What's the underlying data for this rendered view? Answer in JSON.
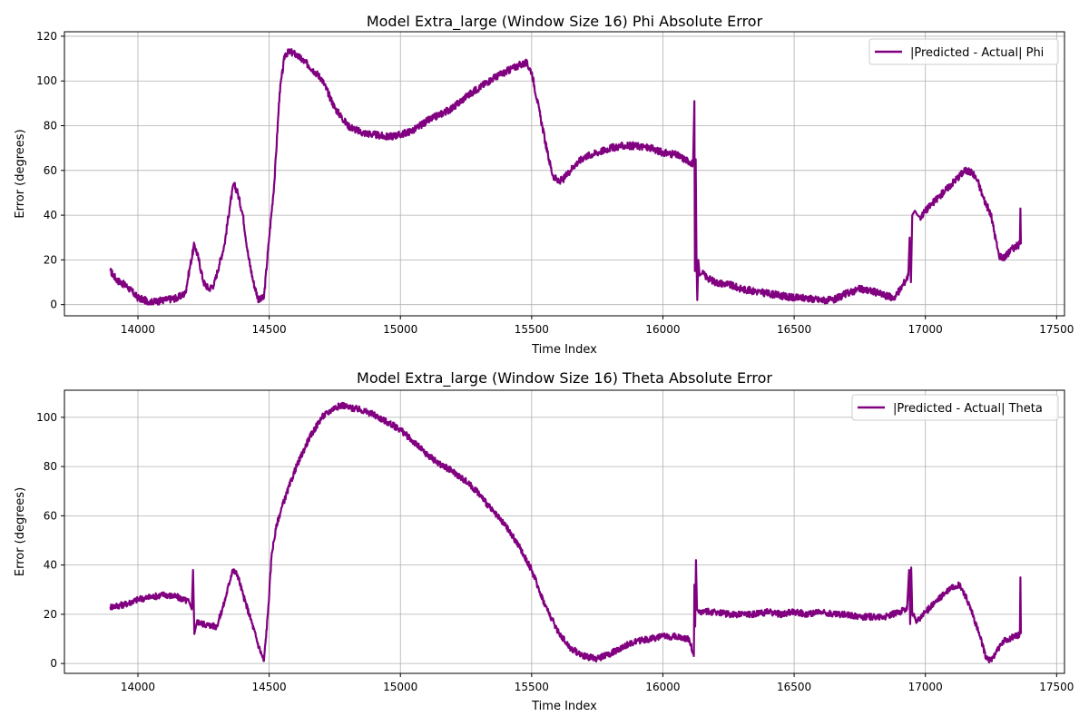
{
  "series_color": "#800080",
  "chart_data": [
    {
      "type": "line",
      "title": "Model Extra_large (Window Size 16) Phi Absolute Error",
      "xlabel": "Time Index",
      "ylabel": "Error (degrees)",
      "xlim": [
        13720,
        17530
      ],
      "ylim": [
        -5,
        122
      ],
      "xticks": [
        14000,
        14500,
        15000,
        15500,
        16000,
        16500,
        17000,
        17500
      ],
      "yticks": [
        0,
        20,
        40,
        60,
        80,
        100,
        120
      ],
      "grid": true,
      "legend_position": "top-right",
      "series": [
        {
          "name": "|Predicted - Actual| Phi",
          "noise": 1.6,
          "x": [
            13895,
            13920,
            13960,
            14000,
            14050,
            14100,
            14150,
            14180,
            14200,
            14215,
            14230,
            14250,
            14270,
            14290,
            14310,
            14330,
            14350,
            14365,
            14380,
            14400,
            14420,
            14440,
            14460,
            14480,
            14500,
            14520,
            14540,
            14560,
            14580,
            14600,
            14650,
            14700,
            14750,
            14800,
            14850,
            14900,
            14950,
            15000,
            15050,
            15100,
            15150,
            15200,
            15250,
            15300,
            15350,
            15400,
            15450,
            15480,
            15500,
            15520,
            15540,
            15560,
            15580,
            15600,
            15620,
            15640,
            15660,
            15700,
            15750,
            15800,
            15850,
            15900,
            15950,
            16000,
            16050,
            16100,
            16115,
            16120,
            16122,
            16125,
            16128,
            16131,
            16135,
            16140,
            16150,
            16170,
            16200,
            16250,
            16300,
            16350,
            16400,
            16450,
            16500,
            16550,
            16600,
            16650,
            16700,
            16750,
            16800,
            16850,
            16880,
            16900,
            16920,
            16935,
            16940,
            16945,
            16950,
            16960,
            16970,
            16980,
            17000,
            17050,
            17100,
            17150,
            17180,
            17200,
            17220,
            17250,
            17280,
            17300,
            17330,
            17360,
            17362,
            17364
          ],
          "y": [
            15,
            11,
            8,
            3,
            1,
            2,
            3,
            5,
            18,
            27,
            21,
            10,
            7,
            9,
            18,
            27,
            44,
            54,
            50,
            40,
            22,
            10,
            2,
            3,
            30,
            55,
            95,
            112,
            113,
            112,
            107,
            101,
            88,
            80,
            77,
            76,
            75,
            76,
            78,
            82,
            85,
            88,
            93,
            97,
            101,
            104,
            107,
            108,
            104,
            92,
            80,
            68,
            58,
            55,
            56,
            59,
            62,
            66,
            68,
            70,
            71,
            71,
            70,
            68,
            67,
            64,
            63,
            91,
            15,
            65,
            20,
            2,
            20,
            13,
            14,
            12,
            10,
            9,
            7,
            6,
            5,
            4,
            3,
            3,
            2,
            2,
            5,
            7,
            6,
            4,
            3,
            6,
            10,
            13,
            30,
            10,
            40,
            42,
            40,
            39,
            42,
            48,
            54,
            60,
            59,
            55,
            48,
            40,
            22,
            21,
            25,
            27,
            43,
            27
          ]
        }
      ]
    },
    {
      "type": "line",
      "title": "Model Extra_large (Window Size 16) Theta Absolute Error",
      "xlabel": "Time Index",
      "ylabel": "Error (degrees)",
      "xlim": [
        13720,
        17530
      ],
      "ylim": [
        -4,
        111
      ],
      "xticks": [
        14000,
        14500,
        15000,
        15500,
        16000,
        16500,
        17000,
        17500
      ],
      "yticks": [
        0,
        20,
        40,
        60,
        80,
        100
      ],
      "grid": true,
      "legend_position": "top-right",
      "series": [
        {
          "name": "|Predicted - Actual| Theta",
          "noise": 1.3,
          "x": [
            13895,
            13950,
            14000,
            14050,
            14100,
            14150,
            14195,
            14205,
            14210,
            14215,
            14225,
            14250,
            14300,
            14330,
            14360,
            14380,
            14400,
            14430,
            14460,
            14480,
            14495,
            14510,
            14530,
            14550,
            14600,
            14650,
            14700,
            14750,
            14780,
            14800,
            14850,
            14900,
            14950,
            15000,
            15050,
            15100,
            15150,
            15200,
            15250,
            15300,
            15350,
            15400,
            15450,
            15500,
            15550,
            15600,
            15650,
            15700,
            15750,
            15800,
            15850,
            15900,
            15950,
            16000,
            16050,
            16100,
            16118,
            16120,
            16123,
            16126,
            16130,
            16135,
            16150,
            16200,
            16250,
            16300,
            16350,
            16400,
            16450,
            16500,
            16550,
            16600,
            16650,
            16700,
            16750,
            16800,
            16850,
            16900,
            16930,
            16938,
            16942,
            16946,
            16950,
            16970,
            17000,
            17050,
            17100,
            17130,
            17150,
            17180,
            17210,
            17230,
            17250,
            17270,
            17300,
            17340,
            17360,
            17362,
            17364
          ],
          "y": [
            23,
            24,
            26,
            27,
            28,
            27,
            25,
            22,
            38,
            12,
            17,
            16,
            15,
            25,
            38,
            36,
            28,
            18,
            7,
            1,
            20,
            45,
            57,
            64,
            79,
            91,
            100,
            104,
            105,
            104,
            103,
            101,
            98,
            95,
            90,
            85,
            81,
            78,
            74,
            69,
            62,
            56,
            48,
            38,
            24,
            13,
            6,
            3,
            2,
            4,
            7,
            9,
            10,
            11,
            11,
            10,
            3,
            32,
            15,
            42,
            22,
            21,
            21,
            21,
            20,
            20,
            20,
            21,
            20,
            21,
            20,
            21,
            20,
            20,
            19,
            19,
            19,
            21,
            22,
            38,
            16,
            39,
            20,
            17,
            21,
            26,
            31,
            32,
            28,
            20,
            10,
            3,
            1,
            5,
            9,
            11,
            12,
            35,
            12
          ]
        }
      ]
    }
  ]
}
